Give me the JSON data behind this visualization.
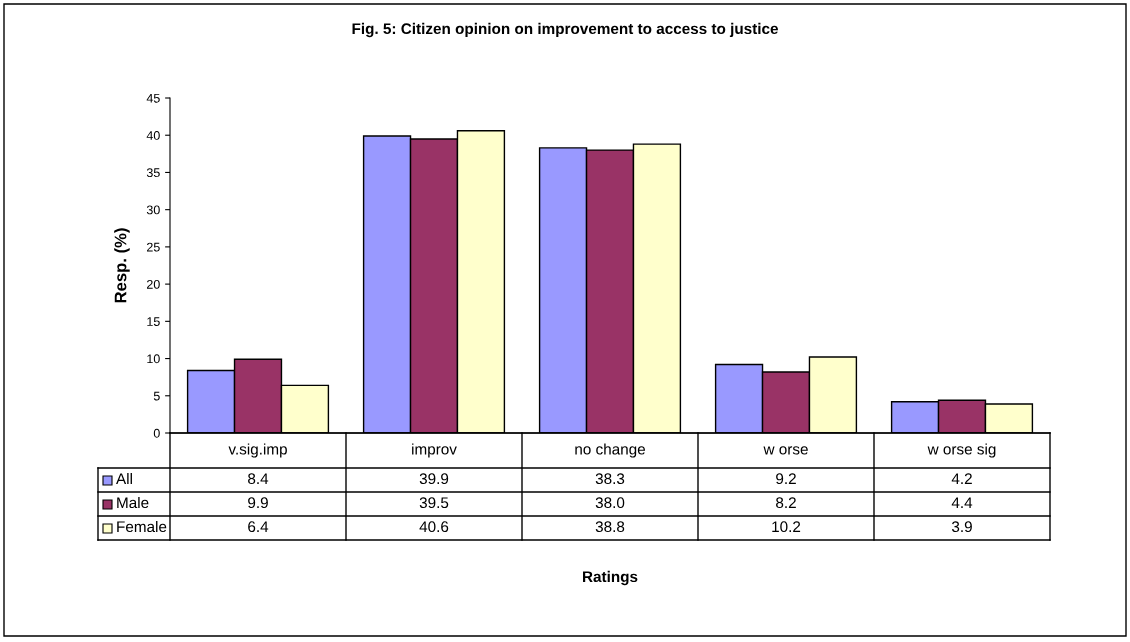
{
  "chart_data": {
    "type": "bar",
    "title": "Fig. 5: Citizen opinion on improvement to access to justice",
    "annotations": [
      "Ratings"
    ],
    "ylabel": "Resp. (%)",
    "categories": [
      "v.sig.imp",
      "improv",
      "no change",
      "w orse",
      "w orse sig"
    ],
    "series": [
      {
        "name": "All",
        "color": "#9999ff",
        "values": [
          8.4,
          39.9,
          38.3,
          9.2,
          4.2
        ],
        "value_labels": [
          "8.4",
          "39.9",
          "38.3",
          "9.2",
          "4.2"
        ]
      },
      {
        "name": "Male",
        "color": "#993366",
        "values": [
          9.9,
          39.5,
          38.0,
          8.2,
          4.4
        ],
        "value_labels": [
          "9.9",
          "39.5",
          "38.0",
          "8.2",
          "4.4"
        ]
      },
      {
        "name": "Female",
        "color": "#ffffcc",
        "values": [
          6.4,
          40.6,
          38.8,
          10.2,
          3.9
        ],
        "value_labels": [
          "6.4",
          "40.6",
          "38.8",
          "10.2",
          "3.9"
        ]
      }
    ],
    "ylim": [
      0,
      45
    ],
    "yticks": [
      0,
      5,
      10,
      15,
      20,
      25,
      30,
      35,
      40,
      45
    ],
    "legend": "bottom left",
    "grid": false
  }
}
